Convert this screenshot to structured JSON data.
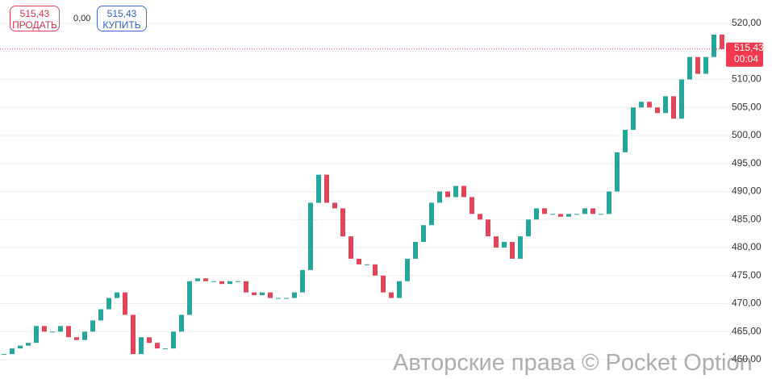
{
  "header": {
    "sell_price": "515,43",
    "sell_label": "ПРОДАТЬ",
    "spread": "0,00",
    "buy_price": "515,43",
    "buy_label": "КУПИТЬ"
  },
  "chart_data": {
    "type": "candlestick",
    "values": [
      461,
      462,
      462.5,
      463,
      466,
      465,
      465,
      466,
      464,
      463.5,
      465,
      467,
      469,
      471,
      472,
      468,
      461,
      464,
      463,
      462,
      462,
      465,
      468,
      474,
      474.5,
      474,
      474,
      473.5,
      474,
      474,
      472,
      471.5,
      472,
      471,
      471,
      471,
      472,
      476,
      488,
      493,
      488,
      487,
      482,
      478,
      477,
      477,
      475,
      472,
      471,
      474,
      478,
      481,
      484,
      488,
      490,
      489,
      491,
      489,
      486,
      485,
      482,
      480,
      481,
      478,
      482,
      485,
      487,
      486,
      486,
      485.5,
      486,
      486,
      487,
      486,
      486,
      490,
      497,
      501,
      505,
      506,
      505,
      504,
      507,
      503,
      510,
      514,
      511,
      514,
      518,
      515.43
    ],
    "up_color": "#26a69a",
    "down_color": "#e0455b",
    "ylim": [
      456.55,
      524.17
    ],
    "yticks": [
      {
        "value": 460,
        "label": "460,00"
      },
      {
        "value": 465,
        "label": "465,00"
      },
      {
        "value": 470,
        "label": "470,00"
      },
      {
        "value": 475,
        "label": "475,00"
      },
      {
        "value": 480,
        "label": "480,00"
      },
      {
        "value": 485,
        "label": "485,00"
      },
      {
        "value": 490,
        "label": "490,00"
      },
      {
        "value": 495,
        "label": "495,00"
      },
      {
        "value": 500,
        "label": "500,00"
      },
      {
        "value": 505,
        "label": "505,00"
      },
      {
        "value": 510,
        "label": "510,00"
      },
      {
        "value": 515,
        "label": "515,00"
      },
      {
        "value": 520,
        "label": "520,00"
      }
    ],
    "grid": true,
    "current_price": {
      "value": 515.43,
      "label": "515,43",
      "timer": "00:04"
    }
  },
  "watermark": "Авторские права © Pocket Option"
}
